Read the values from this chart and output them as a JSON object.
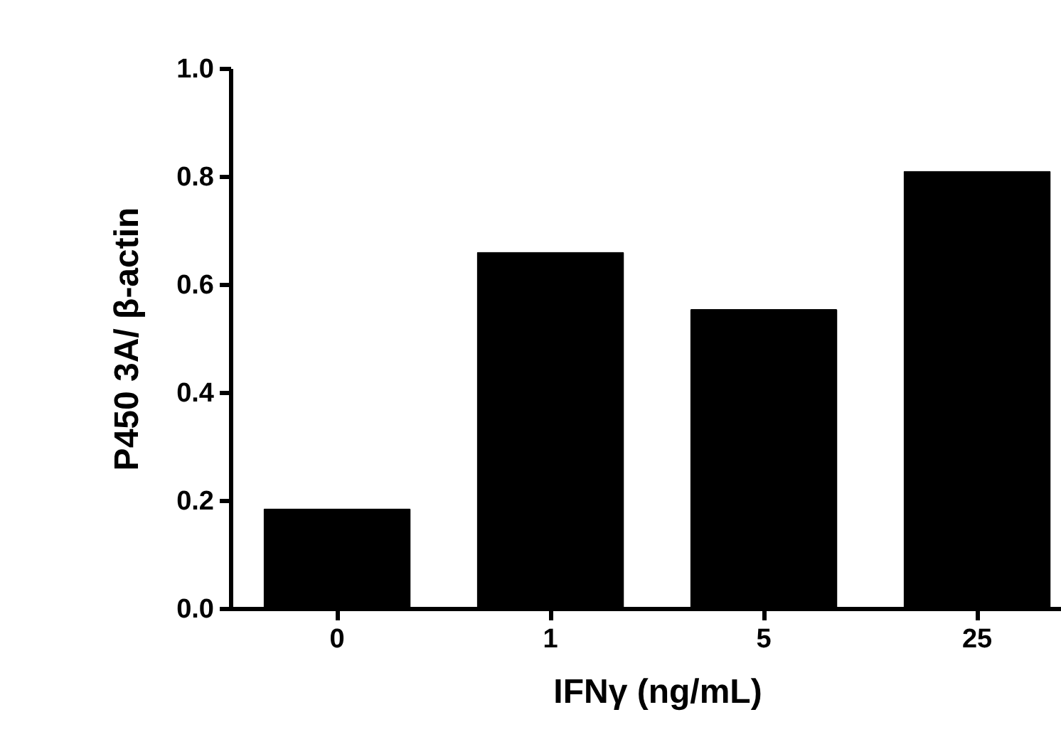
{
  "chart_data": {
    "type": "bar",
    "xlabel": "IFNγ (ng/mL)",
    "ylabel": "P450 3A/ β-actin",
    "categories": [
      "0",
      "1",
      "5",
      "25"
    ],
    "values": [
      0.185,
      0.66,
      0.554,
      0.81
    ],
    "color": "#000000",
    "ylim": [
      0,
      1
    ],
    "yticks": [
      {
        "value": 0,
        "label": "0.0"
      },
      {
        "value": 0.2,
        "label": "0.2"
      },
      {
        "value": 0.4,
        "label": "0.4"
      },
      {
        "value": 0.6,
        "label": "0.6"
      },
      {
        "value": 0.8,
        "label": "0.8"
      },
      {
        "value": 1,
        "label": "1.0"
      }
    ],
    "grid": false
  }
}
